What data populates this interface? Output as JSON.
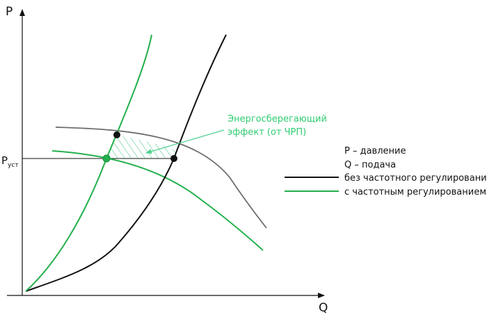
{
  "axes": {
    "y_label": "P",
    "x_label": "Q",
    "p_set_main": "P",
    "p_set_sub": "уст"
  },
  "annotation": {
    "line1": "Энергосберегающий",
    "line2": "эффект (от ЧРП)"
  },
  "legend": {
    "item_pressure": "P – давление",
    "item_flow": "Q – подача",
    "item_black": "без частотного регулирования",
    "item_green": "с частотным регулированием"
  },
  "colors": {
    "black_curve": "#111111",
    "green_curve": "#22b04b",
    "gray_curve": "#6e6e6e",
    "annotation": "#2ecc71",
    "hatch": "#3fbf7f"
  }
}
